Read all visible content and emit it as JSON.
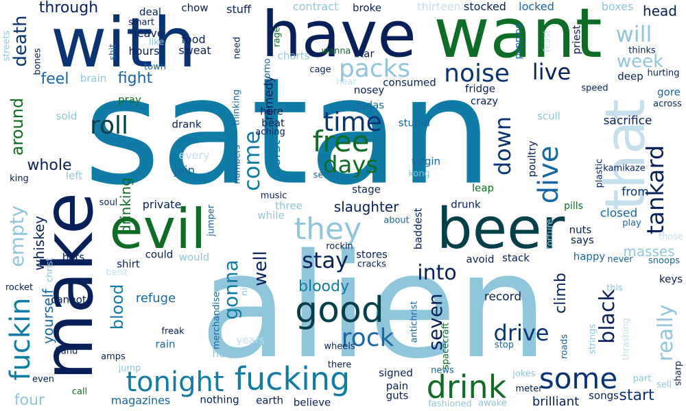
{
  "palette": {
    "navy": "#083374",
    "dark_navy": "#07205a",
    "teal": "#0f7ca6",
    "dark_teal": "#03404a",
    "light_blue": "#8fc6dc",
    "pale_blue": "#c3e0ec",
    "green": "#0e6d24",
    "blue": "#1767a2"
  },
  "words": [
    {
      "text": "satan",
      "color": "teal"
    },
    {
      "text": "alien",
      "color": "light_blue"
    },
    {
      "text": "make",
      "color": "dark_navy"
    },
    {
      "text": "want",
      "color": "green"
    },
    {
      "text": "with",
      "color": "navy"
    },
    {
      "text": "have",
      "color": "dark_navy"
    },
    {
      "text": "beer",
      "color": "dark_teal"
    },
    {
      "text": "evil",
      "color": "green"
    },
    {
      "text": "that",
      "color": "pale_blue"
    },
    {
      "text": "good",
      "color": "dark_teal"
    },
    {
      "text": "fucking",
      "color": "teal"
    },
    {
      "text": "drink",
      "color": "green"
    },
    {
      "text": "tonight",
      "color": "teal"
    },
    {
      "text": "fuckin",
      "color": "teal"
    },
    {
      "text": "dive",
      "color": "blue"
    },
    {
      "text": "some",
      "color": "navy"
    },
    {
      "text": "they",
      "color": "light_blue"
    },
    {
      "text": "free",
      "color": "green"
    },
    {
      "text": "rock",
      "color": "blue"
    },
    {
      "text": "packs",
      "color": "light_blue"
    },
    {
      "text": "noise",
      "color": "navy"
    },
    {
      "text": "time",
      "color": "navy"
    },
    {
      "text": "tankard",
      "color": "dark_navy"
    },
    {
      "text": "days",
      "color": "green"
    },
    {
      "text": "come",
      "color": "teal"
    },
    {
      "text": "down",
      "color": "navy"
    },
    {
      "text": "live",
      "color": "dark_navy"
    },
    {
      "text": "will",
      "color": "light_blue"
    },
    {
      "text": "week",
      "color": "light_blue"
    },
    {
      "text": "roll",
      "color": "dark_teal"
    },
    {
      "text": "drive",
      "color": "navy"
    },
    {
      "text": "stay",
      "color": "dark_navy"
    },
    {
      "text": "seven",
      "color": "dark_navy"
    },
    {
      "text": "into",
      "color": "dark_navy"
    },
    {
      "text": "black",
      "color": "dark_navy"
    },
    {
      "text": "really",
      "color": "light_blue"
    },
    {
      "text": "gonna",
      "color": "teal"
    },
    {
      "text": "empty",
      "color": "light_blue"
    },
    {
      "text": "death",
      "color": "navy"
    },
    {
      "text": "around",
      "color": "green"
    },
    {
      "text": "well",
      "color": "dark_navy"
    },
    {
      "text": "blood",
      "color": "teal"
    },
    {
      "text": "bloody",
      "color": "teal"
    },
    {
      "text": "through",
      "color": "dark_navy"
    },
    {
      "text": "whole",
      "color": "dark_navy"
    },
    {
      "text": "feel",
      "color": "blue"
    },
    {
      "text": "fight",
      "color": "blue"
    },
    {
      "text": "slaughter",
      "color": "dark_navy"
    },
    {
      "text": "climb",
      "color": "dark_navy"
    },
    {
      "text": "drinking",
      "color": "green"
    },
    {
      "text": "start",
      "color": "navy"
    },
    {
      "text": "four",
      "color": "light_blue"
    },
    {
      "text": "yourself",
      "color": "blue"
    },
    {
      "text": "whiskey",
      "color": "dark_navy"
    },
    {
      "text": "magazines",
      "color": "blue"
    },
    {
      "text": "brilliant",
      "color": "dark_navy"
    },
    {
      "text": "masses",
      "color": "light_blue"
    },
    {
      "text": "worst",
      "color": "teal"
    },
    {
      "text": "sacrifice",
      "color": "dark_navy"
    },
    {
      "text": "head",
      "color": "dark_navy"
    },
    {
      "text": "remedy",
      "color": "dark_navy"
    },
    {
      "text": "refuge",
      "color": "blue"
    },
    {
      "text": "record",
      "color": "dark_navy"
    },
    {
      "text": "closed",
      "color": "blue"
    },
    {
      "text": "from",
      "color": "navy"
    },
    {
      "text": "join",
      "color": "blue"
    },
    {
      "text": "private",
      "color": "dark_navy"
    },
    {
      "text": "every",
      "color": "pale_blue"
    },
    {
      "text": "stocked",
      "color": "dark_navy"
    },
    {
      "text": "locked",
      "color": "blue"
    },
    {
      "text": "boxes",
      "color": "light_blue"
    },
    {
      "text": "contract",
      "color": "light_blue"
    },
    {
      "text": "broke",
      "color": "dark_navy"
    },
    {
      "text": "thirteen",
      "color": "pale_blue"
    },
    {
      "text": "stuff",
      "color": "dark_navy"
    },
    {
      "text": "chow",
      "color": "dark_navy"
    },
    {
      "text": "deal",
      "color": "dark_navy"
    },
    {
      "text": "smart",
      "color": "dark_navy"
    },
    {
      "text": "leave",
      "color": "dark_navy"
    },
    {
      "text": "food",
      "color": "dark_navy"
    },
    {
      "text": "like",
      "color": "light_blue"
    },
    {
      "text": "hours",
      "color": "dark_navy"
    },
    {
      "text": "sweat",
      "color": "dark_navy"
    },
    {
      "text": "need",
      "color": "dark_navy"
    },
    {
      "text": "rage",
      "color": "green"
    },
    {
      "text": "charts",
      "color": "light_blue"
    },
    {
      "text": "porno",
      "color": "blue"
    },
    {
      "text": "wanna",
      "color": "green"
    },
    {
      "text": "star",
      "color": "dark_navy"
    },
    {
      "text": "cage",
      "color": "dark_navy"
    },
    {
      "text": "hear",
      "color": "pale_blue"
    },
    {
      "text": "popping",
      "color": "blue"
    },
    {
      "text": "feast",
      "color": "pale_blue"
    },
    {
      "text": "priest",
      "color": "dark_navy"
    },
    {
      "text": "thinks",
      "color": "dark_navy"
    },
    {
      "text": "deep",
      "color": "dark_navy"
    },
    {
      "text": "hurting",
      "color": "dark_navy"
    },
    {
      "text": "gore",
      "color": "blue"
    },
    {
      "text": "across",
      "color": "dark_navy"
    },
    {
      "text": "speed",
      "color": "dark_navy"
    },
    {
      "text": "streets",
      "color": "light_blue"
    },
    {
      "text": "shit",
      "color": "blue"
    },
    {
      "text": "bones",
      "color": "dark_navy"
    },
    {
      "text": "town",
      "color": "blue"
    },
    {
      "text": "brain",
      "color": "light_blue"
    },
    {
      "text": "consumed",
      "color": "dark_navy"
    },
    {
      "text": "nosey",
      "color": "dark_navy"
    },
    {
      "text": "fridge",
      "color": "dark_navy"
    },
    {
      "text": "judas",
      "color": "blue"
    },
    {
      "text": "crazy",
      "color": "dark_navy"
    },
    {
      "text": "pray",
      "color": "green"
    },
    {
      "text": "thinking",
      "color": "blue"
    },
    {
      "text": "here",
      "color": "dark_navy"
    },
    {
      "text": "beat",
      "color": "dark_navy"
    },
    {
      "text": "aching",
      "color": "dark_navy"
    },
    {
      "text": "stupid",
      "color": "blue"
    },
    {
      "text": "scull",
      "color": "light_blue"
    },
    {
      "text": "poultry",
      "color": "dark_navy"
    },
    {
      "text": "sold",
      "color": "light_blue"
    },
    {
      "text": "drank",
      "color": "dark_navy"
    },
    {
      "text": "virgin",
      "color": "blue"
    },
    {
      "text": "settin",
      "color": "blue"
    },
    {
      "text": "kong",
      "color": "light_blue"
    },
    {
      "text": "kamikaze",
      "color": "dark_navy"
    },
    {
      "text": "plastic",
      "color": "dark_navy"
    },
    {
      "text": "king",
      "color": "dark_navy"
    },
    {
      "text": "left",
      "color": "light_blue"
    },
    {
      "text": "numbers",
      "color": "blue"
    },
    {
      "text": "music",
      "color": "dark_navy"
    },
    {
      "text": "stage",
      "color": "dark_navy"
    },
    {
      "text": "leap",
      "color": "green"
    },
    {
      "text": "drunk",
      "color": "dark_navy"
    },
    {
      "text": "soul",
      "color": "dark_navy"
    },
    {
      "text": "three",
      "color": "light_blue"
    },
    {
      "text": "while",
      "color": "light_blue"
    },
    {
      "text": "about",
      "color": "blue"
    },
    {
      "text": "baddest",
      "color": "dark_navy"
    },
    {
      "text": "pills",
      "color": "green"
    },
    {
      "text": "play",
      "color": "blue"
    },
    {
      "text": "torture",
      "color": "light_blue"
    },
    {
      "text": "nuts",
      "color": "dark_navy"
    },
    {
      "text": "says",
      "color": "dark_navy"
    },
    {
      "text": "those",
      "color": "pale_blue"
    },
    {
      "text": "jumper",
      "color": "blue"
    },
    {
      "text": "rockin",
      "color": "dark_navy"
    },
    {
      "text": "stores",
      "color": "dark_navy"
    },
    {
      "text": "cracks",
      "color": "dark_navy"
    },
    {
      "text": "avoid",
      "color": "dark_navy"
    },
    {
      "text": "stack",
      "color": "dark_navy"
    },
    {
      "text": "happy",
      "color": "blue"
    },
    {
      "text": "never",
      "color": "blue"
    },
    {
      "text": "snoops",
      "color": "blue"
    },
    {
      "text": "bats",
      "color": "dark_navy"
    },
    {
      "text": "christ",
      "color": "light_blue"
    },
    {
      "text": "shirt",
      "color": "dark_navy"
    },
    {
      "text": "could",
      "color": "dark_navy"
    },
    {
      "text": "would",
      "color": "light_blue"
    },
    {
      "text": "benz",
      "color": "pale_blue"
    },
    {
      "text": "rocket",
      "color": "dark_navy"
    },
    {
      "text": "cannot",
      "color": "dark_navy"
    },
    {
      "text": "nine",
      "color": "light_blue"
    },
    {
      "text": "cult",
      "color": "light_blue"
    },
    {
      "text": "antichrist",
      "color": "blue"
    },
    {
      "text": "spacecraft",
      "color": "green"
    },
    {
      "text": "this",
      "color": "light_blue"
    },
    {
      "text": "thrashing",
      "color": "pale_blue"
    },
    {
      "text": "keys",
      "color": "dark_navy"
    },
    {
      "text": "strings",
      "color": "light_blue"
    },
    {
      "text": "roads",
      "color": "blue"
    },
    {
      "text": "merchandise",
      "color": "blue"
    },
    {
      "text": "freak",
      "color": "dark_navy"
    },
    {
      "text": "rain",
      "color": "blue"
    },
    {
      "text": "years",
      "color": "pale_blue"
    },
    {
      "text": "hell",
      "color": "light_blue"
    },
    {
      "text": "wheels",
      "color": "dark_navy"
    },
    {
      "text": "there",
      "color": "dark_navy"
    },
    {
      "text": "stop",
      "color": "blue"
    },
    {
      "text": "jokes",
      "color": "light_blue"
    },
    {
      "text": "sharp",
      "color": "dark_navy"
    },
    {
      "text": "band",
      "color": "dark_navy"
    },
    {
      "text": "amps",
      "color": "dark_navy"
    },
    {
      "text": "jump",
      "color": "light_blue"
    },
    {
      "text": "even",
      "color": "dark_navy"
    },
    {
      "text": "call",
      "color": "green"
    },
    {
      "text": "signed",
      "color": "dark_navy"
    },
    {
      "text": "news",
      "color": "blue"
    },
    {
      "text": "pain",
      "color": "dark_navy"
    },
    {
      "text": "guts",
      "color": "dark_navy"
    },
    {
      "text": "meter",
      "color": "dark_navy"
    },
    {
      "text": "part",
      "color": "light_blue"
    },
    {
      "text": "sell",
      "color": "light_blue"
    },
    {
      "text": "songs",
      "color": "dark_navy"
    },
    {
      "text": "nothing",
      "color": "dark_navy"
    },
    {
      "text": "earth",
      "color": "dark_navy"
    },
    {
      "text": "believe",
      "color": "dark_navy"
    },
    {
      "text": "fashioned",
      "color": "light_blue"
    },
    {
      "text": "awake",
      "color": "light_blue"
    }
  ]
}
